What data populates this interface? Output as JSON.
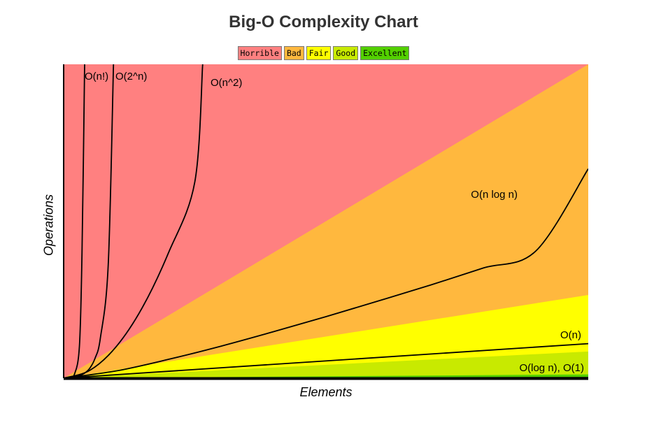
{
  "chart_data": {
    "type": "area",
    "title": "Big-O Complexity Chart",
    "xlabel": "Elements",
    "ylabel": "Operations",
    "xlim": [
      0,
      100
    ],
    "ylim": [
      0,
      1000
    ],
    "legend": {
      "placement": "top-center",
      "items": [
        {
          "label": "Horrible",
          "color": "#ff8080"
        },
        {
          "label": "Bad",
          "color": "#ffb83e"
        },
        {
          "label": "Fair",
          "color": "#ffff00"
        },
        {
          "label": "Good",
          "color": "#c8ea00"
        },
        {
          "label": "Excellent",
          "color": "#53d000"
        }
      ]
    },
    "regions": [
      {
        "name": "Horrible",
        "color": "#ff8080",
        "upper_at_x100": 1000
      },
      {
        "name": "Bad",
        "color": "#ffb83e",
        "upper_at_x100": 1000
      },
      {
        "name": "Fair",
        "color": "#ffff00",
        "upper_at_x100": 265
      },
      {
        "name": "Good",
        "color": "#c8ea00",
        "upper_at_x100": 85
      },
      {
        "name": "Excellent",
        "color": "#53d000",
        "upper_at_x100": 12
      }
    ],
    "series": [
      {
        "name": "O(n!)",
        "label": "O(n!)",
        "x": [
          0,
          0.5,
          1,
          2,
          3,
          3.5,
          4
        ],
        "y": [
          0,
          1,
          2,
          10,
          100,
          400,
          1000
        ]
      },
      {
        "name": "O(2^n)",
        "label": "O(2^n)",
        "x": [
          0,
          1,
          2,
          3,
          4,
          5,
          6,
          7,
          8.5,
          9.5
        ],
        "y": [
          0,
          2,
          4,
          8,
          16,
          32,
          64,
          128,
          362,
          1000
        ]
      },
      {
        "name": "O(n^2)",
        "label": "O(n^2)",
        "x": [
          0,
          5,
          10,
          15,
          20,
          25,
          26.5
        ],
        "y": [
          0,
          25,
          100,
          225,
          400,
          625,
          1000
        ]
      },
      {
        "name": "O(n log n)",
        "label": "O(n log n)",
        "x": [
          0,
          10,
          20,
          30,
          40,
          50,
          60,
          70,
          80,
          90,
          100
        ],
        "y": [
          0,
          23,
          60,
          102,
          148,
          196,
          246,
          297,
          351,
          405,
          667
        ]
      },
      {
        "name": "O(n)",
        "label": "O(n)",
        "x": [
          0,
          100
        ],
        "y": [
          0,
          110
        ]
      },
      {
        "name": "O(log n), O(1)",
        "label": "O(log n), O(1)",
        "x": [
          0,
          100
        ],
        "y": [
          0,
          2
        ]
      }
    ],
    "grid": false
  }
}
